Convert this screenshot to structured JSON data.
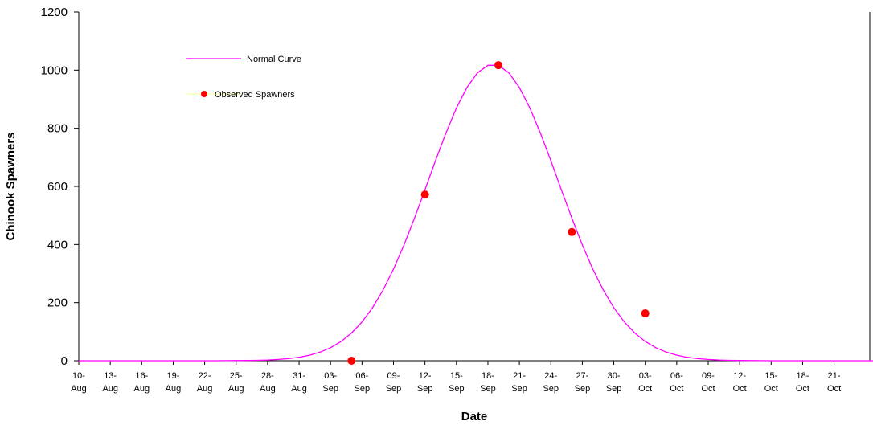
{
  "chart_data": {
    "type": "line",
    "title": "",
    "xlabel": "Date",
    "ylabel": "Chinook Spawners",
    "ylim": [
      0,
      1200
    ],
    "yticks": [
      "0",
      "200",
      "400",
      "600",
      "800",
      "1000",
      "1200"
    ],
    "x_domain_days": [
      0,
      102
    ],
    "x_ticks": [
      {
        "day": 0,
        "line1": "10-",
        "line2": "Aug"
      },
      {
        "day": 3,
        "line1": "13-",
        "line2": "Aug"
      },
      {
        "day": 6,
        "line1": "16-",
        "line2": "Aug"
      },
      {
        "day": 9,
        "line1": "19-",
        "line2": "Aug"
      },
      {
        "day": 12,
        "line1": "22-",
        "line2": "Aug"
      },
      {
        "day": 15,
        "line1": "25-",
        "line2": "Aug"
      },
      {
        "day": 18,
        "line1": "28-",
        "line2": "Aug"
      },
      {
        "day": 21,
        "line1": "31-",
        "line2": "Aug"
      },
      {
        "day": 24,
        "line1": "03-",
        "line2": "Sep"
      },
      {
        "day": 27,
        "line1": "06-",
        "line2": "Sep"
      },
      {
        "day": 30,
        "line1": "09-",
        "line2": "Sep"
      },
      {
        "day": 33,
        "line1": "12-",
        "line2": "Sep"
      },
      {
        "day": 36,
        "line1": "15-",
        "line2": "Sep"
      },
      {
        "day": 39,
        "line1": "18-",
        "line2": "Sep"
      },
      {
        "day": 42,
        "line1": "21-",
        "line2": "Sep"
      },
      {
        "day": 45,
        "line1": "24-",
        "line2": "Sep"
      },
      {
        "day": 48,
        "line1": "27-",
        "line2": "Sep"
      },
      {
        "day": 51,
        "line1": "30-",
        "line2": "Sep"
      },
      {
        "day": 54,
        "line1": "03-",
        "line2": "Oct"
      },
      {
        "day": 57,
        "line1": "06-",
        "line2": "Oct"
      },
      {
        "day": 60,
        "line1": "09-",
        "line2": "Oct"
      },
      {
        "day": 63,
        "line1": "12-",
        "line2": "Oct"
      },
      {
        "day": 66,
        "line1": "15-",
        "line2": "Oct"
      },
      {
        "day": 69,
        "line1": "18-",
        "line2": "Oct"
      },
      {
        "day": 72,
        "line1": "21-",
        "line2": "Oct"
      }
    ],
    "series": [
      {
        "name": "Normal Curve",
        "type": "line",
        "color": "#ff00ff",
        "peak": 1020,
        "mean_day": 39.5,
        "sd_days": 6.2,
        "day_range": [
          0,
          102
        ]
      },
      {
        "name": "Observed Spawners",
        "type": "scatter",
        "color": "#ff0000",
        "legend_line_color": "#ffff99",
        "points": [
          {
            "day": 26,
            "value": 0
          },
          {
            "day": 33,
            "value": 572
          },
          {
            "day": 40,
            "value": 1017
          },
          {
            "day": 47,
            "value": 443
          },
          {
            "day": 54,
            "value": 163
          }
        ]
      }
    ],
    "legend": {
      "placement": "top-left"
    },
    "grid": false
  }
}
